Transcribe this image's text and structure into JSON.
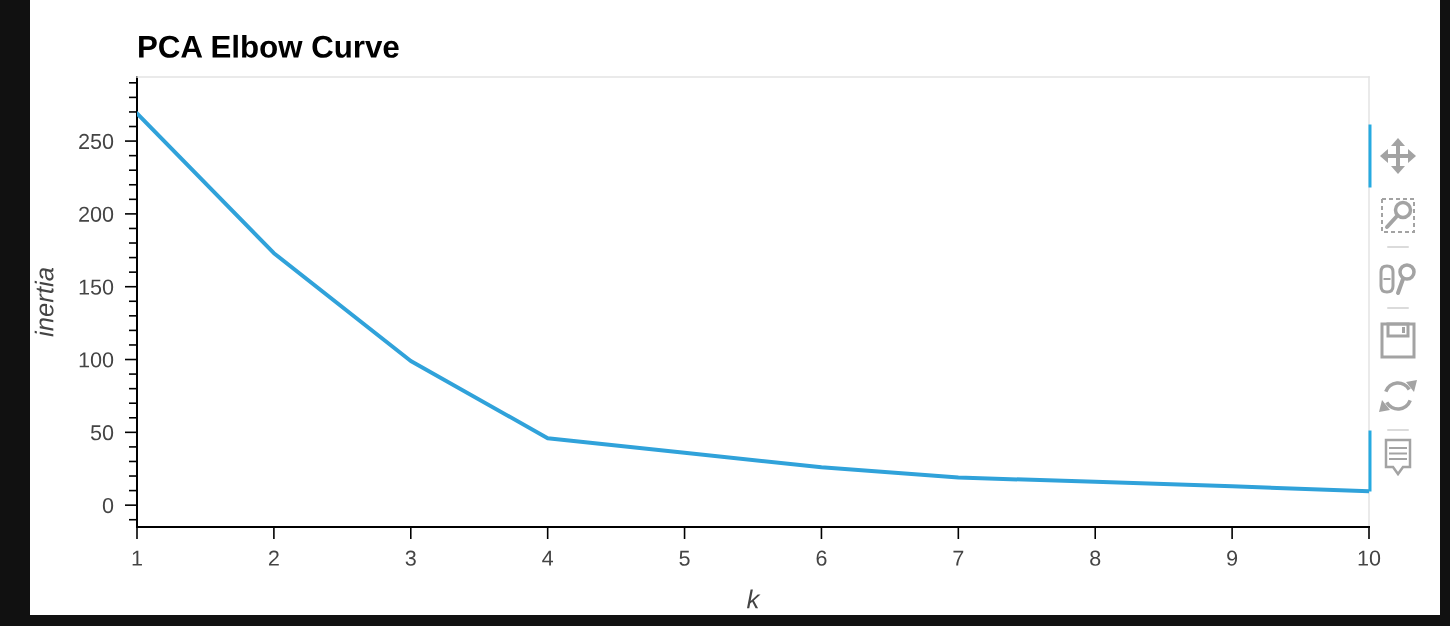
{
  "chart_data": {
    "type": "line",
    "title": "PCA Elbow Curve",
    "xlabel": "k",
    "ylabel": "inertia",
    "x": [
      1,
      2,
      3,
      4,
      5,
      6,
      7,
      8,
      9,
      10
    ],
    "series": [
      {
        "color": "#30a2da",
        "values": [
          269,
          173,
          99,
          46,
          36,
          26,
          19,
          16,
          13,
          9.5
        ]
      }
    ],
    "xlim": [
      1,
      10
    ],
    "ylim": [
      -15,
      294
    ],
    "xticks": [
      1,
      2,
      3,
      4,
      5,
      6,
      7,
      8,
      9,
      10
    ],
    "yticks": [
      {
        "value": -10,
        "label": null
      },
      0,
      {
        "value": 10,
        "label": null
      },
      {
        "value": 20,
        "label": null
      },
      {
        "value": 30,
        "label": null
      },
      {
        "value": 40,
        "label": null
      },
      50,
      {
        "value": 60,
        "label": null
      },
      {
        "value": 70,
        "label": null
      },
      {
        "value": 80,
        "label": null
      },
      {
        "value": 90,
        "label": null
      },
      100,
      {
        "value": 110,
        "label": null
      },
      {
        "value": 120,
        "label": null
      },
      {
        "value": 130,
        "label": null
      },
      {
        "value": 140,
        "label": null
      },
      150,
      {
        "value": 160,
        "label": null
      },
      {
        "value": 170,
        "label": null
      },
      {
        "value": 180,
        "label": null
      },
      {
        "value": 190,
        "label": null
      },
      200,
      {
        "value": 210,
        "label": null
      },
      {
        "value": 220,
        "label": null
      },
      {
        "value": 230,
        "label": null
      },
      {
        "value": 240,
        "label": null
      },
      250,
      {
        "value": 260,
        "label": null
      },
      {
        "value": 270,
        "label": null
      },
      {
        "value": 280,
        "label": null
      },
      {
        "value": 290,
        "label": null
      }
    ],
    "line_style": "solid"
  }
}
